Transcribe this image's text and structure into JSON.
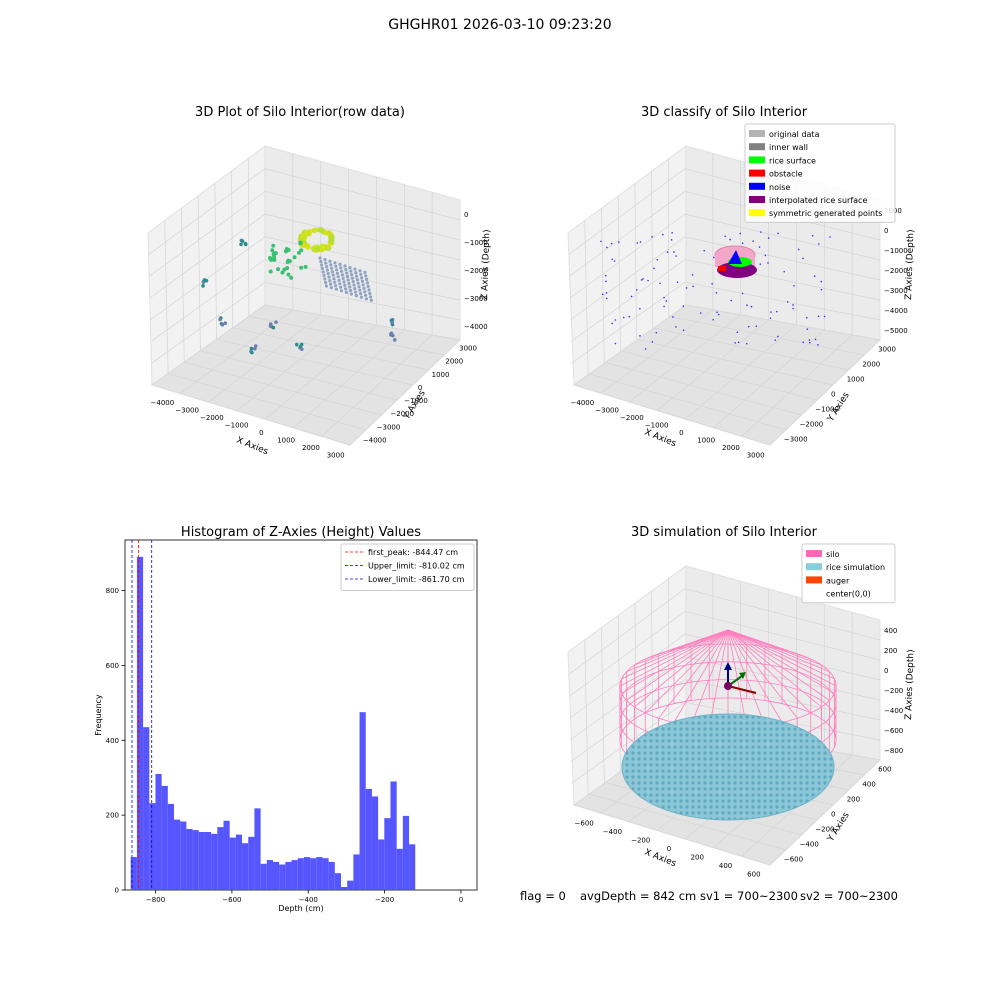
{
  "figure": {
    "suptitle": "GHGHR01 2026-03-10 09:23:20"
  },
  "footer": {
    "flag": "flag = 0",
    "avg_depth": "avgDepth = 842 cm",
    "sv1": "sv1 = 700~2300",
    "sv2": "sv2 = 700~2300"
  },
  "colors": {
    "hist_bar": "#4d4dff",
    "first_peak_line": "#ff0000",
    "limit_lines": "#0000ff",
    "silo_wire": "#ff69b4",
    "rice_simulation": "#87c8dc",
    "auger": "#ff4500",
    "pane_light": "#f2f2f2",
    "pane_mid": "#e6e6e6",
    "grid": "#d9d9d9"
  },
  "chart_data": [
    {
      "type": "scatter",
      "projection": "3d",
      "title": "3D Plot of Silo Interior(row data)",
      "xlabel": "X Axies",
      "ylabel": "Y Axies",
      "zlabel": "Z Axies (Depth)",
      "xticks": [
        "−4000",
        "−3000",
        "−2000",
        "−1000",
        "0",
        "1000",
        "2000",
        "3000"
      ],
      "yticks": [
        "−4000",
        "−3000",
        "−2000",
        "−1000",
        "0",
        "1000",
        "2000",
        "3000"
      ],
      "zticks": [
        "0",
        "−1000",
        "−2000",
        "−3000",
        "−4000"
      ],
      "grid": true,
      "colormap": "viridis (colored by depth)"
    },
    {
      "type": "scatter",
      "projection": "3d",
      "title": "3D classify of Silo Interior",
      "xlabel": "X Axies",
      "ylabel": "Y Axies",
      "zlabel": "Z Axies (Depth)",
      "xticks": [
        "−4000",
        "−3000",
        "−2000",
        "−1000",
        "0",
        "1000",
        "2000",
        "3000"
      ],
      "yticks": [
        "−3000",
        "−2000",
        "−1000",
        "0",
        "1000",
        "2000",
        "3000"
      ],
      "zticks": [
        "1000",
        "0",
        "−1000",
        "−2000",
        "−3000",
        "−4000",
        "−5000"
      ],
      "grid": true,
      "legend_position": "top-right",
      "legend": [
        {
          "label": "original data",
          "color": "#b3b3b3"
        },
        {
          "label": "inner wall",
          "color": "#808080"
        },
        {
          "label": "rice surface",
          "color": "#00ff00"
        },
        {
          "label": "obstacle",
          "color": "#ff0000"
        },
        {
          "label": "noise",
          "color": "#0000ff"
        },
        {
          "label": "interpolated rice surface",
          "color": "#800080"
        },
        {
          "label": "symmetric generated points",
          "color": "#ffff00"
        }
      ]
    },
    {
      "type": "bar",
      "title": "Histogram of Z-Axies (Height) Values",
      "xlabel": "Depth (cm)",
      "ylabel": "Frequency",
      "xlim": [
        -880,
        42
      ],
      "ylim": [
        0,
        935
      ],
      "xticks": [
        -800,
        -600,
        -400,
        -200,
        0
      ],
      "yticks": [
        0,
        200,
        400,
        600,
        800
      ],
      "bin_start": -865,
      "bin_width": 16.2,
      "values": [
        88,
        890,
        435,
        232,
        310,
        278,
        230,
        188,
        183,
        163,
        160,
        155,
        155,
        150,
        168,
        185,
        140,
        148,
        125,
        142,
        218,
        70,
        80,
        75,
        68,
        75,
        80,
        85,
        88,
        85,
        88,
        85,
        75,
        45,
        8,
        25,
        95,
        475,
        270,
        250,
        135,
        192,
        290,
        110,
        198,
        122
      ],
      "vlines": [
        {
          "label": "first_peak: -844.47 cm",
          "x": -844.47,
          "color": "#ff0000"
        },
        {
          "label": "Upper_limit: -810.02 cm",
          "x": -810.02,
          "color": "#0000ff"
        },
        {
          "label": "Lower_limit: -861.70 cm",
          "x": -861.7,
          "color": "#0000ff"
        }
      ],
      "legend_position": "top-right"
    },
    {
      "type": "scatter",
      "projection": "3d",
      "title": "3D simulation of Silo Interior",
      "xlabel": "X Axies",
      "ylabel": "Y Axies",
      "zlabel": "Z Axies (Depth)",
      "xticks": [
        "−600",
        "−400",
        "−200",
        "0",
        "200",
        "400",
        "600"
      ],
      "yticks": [
        "−600",
        "−400",
        "−200",
        "0",
        "200",
        "400",
        "600"
      ],
      "zticks": [
        "400",
        "200",
        "0",
        "−200",
        "−400",
        "−600",
        "−800"
      ],
      "grid": true,
      "legend_position": "top-right",
      "legend": [
        {
          "label": "silo",
          "color": "#ff69b4"
        },
        {
          "label": "rice simulation",
          "color": "#87cedc"
        },
        {
          "label": "auger",
          "color": "#ff4500"
        },
        {
          "label": "center(0,0)",
          "color": "none"
        }
      ]
    }
  ]
}
